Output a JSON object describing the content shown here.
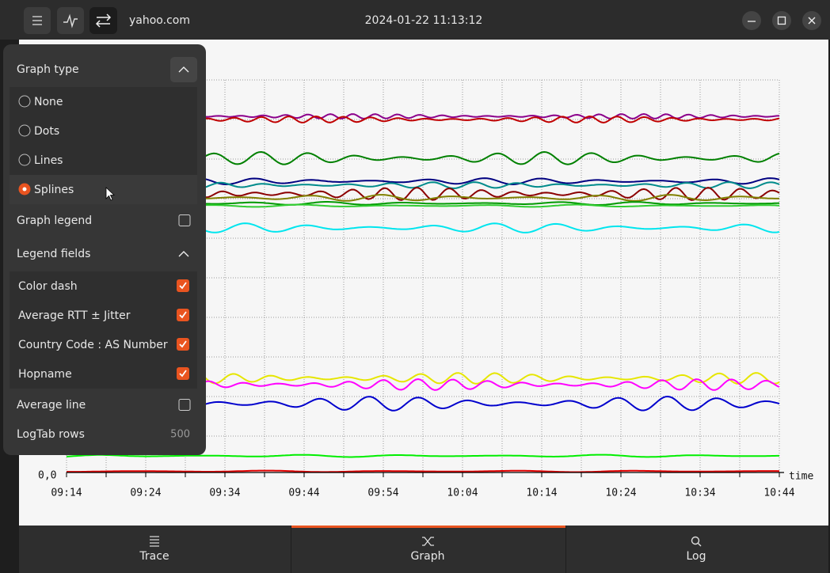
{
  "header": {
    "host": "yahoo.com",
    "datetime": "2024-01-22 11:13:12"
  },
  "graph": {
    "y_label": "0,0",
    "x_axis_label": "time",
    "x_ticks": [
      "09:14",
      "09:24",
      "09:34",
      "09:44",
      "09:54",
      "10:04",
      "10:14",
      "10:24",
      "10:34",
      "10:44"
    ]
  },
  "menu": {
    "graph_type": {
      "title": "Graph type",
      "options": [
        "None",
        "Dots",
        "Lines",
        "Splines"
      ]
    },
    "graph_legend": "Graph legend",
    "legend_fields": {
      "title": "Legend fields",
      "options": [
        "Color dash",
        "Average RTT ± Jitter",
        "Country Code : AS Number",
        "Hopname"
      ]
    },
    "average_line": "Average line",
    "logtab_rows": {
      "label": "LogTab rows",
      "value": 500
    }
  },
  "tabs": [
    "Trace",
    "Graph",
    "Log"
  ]
}
